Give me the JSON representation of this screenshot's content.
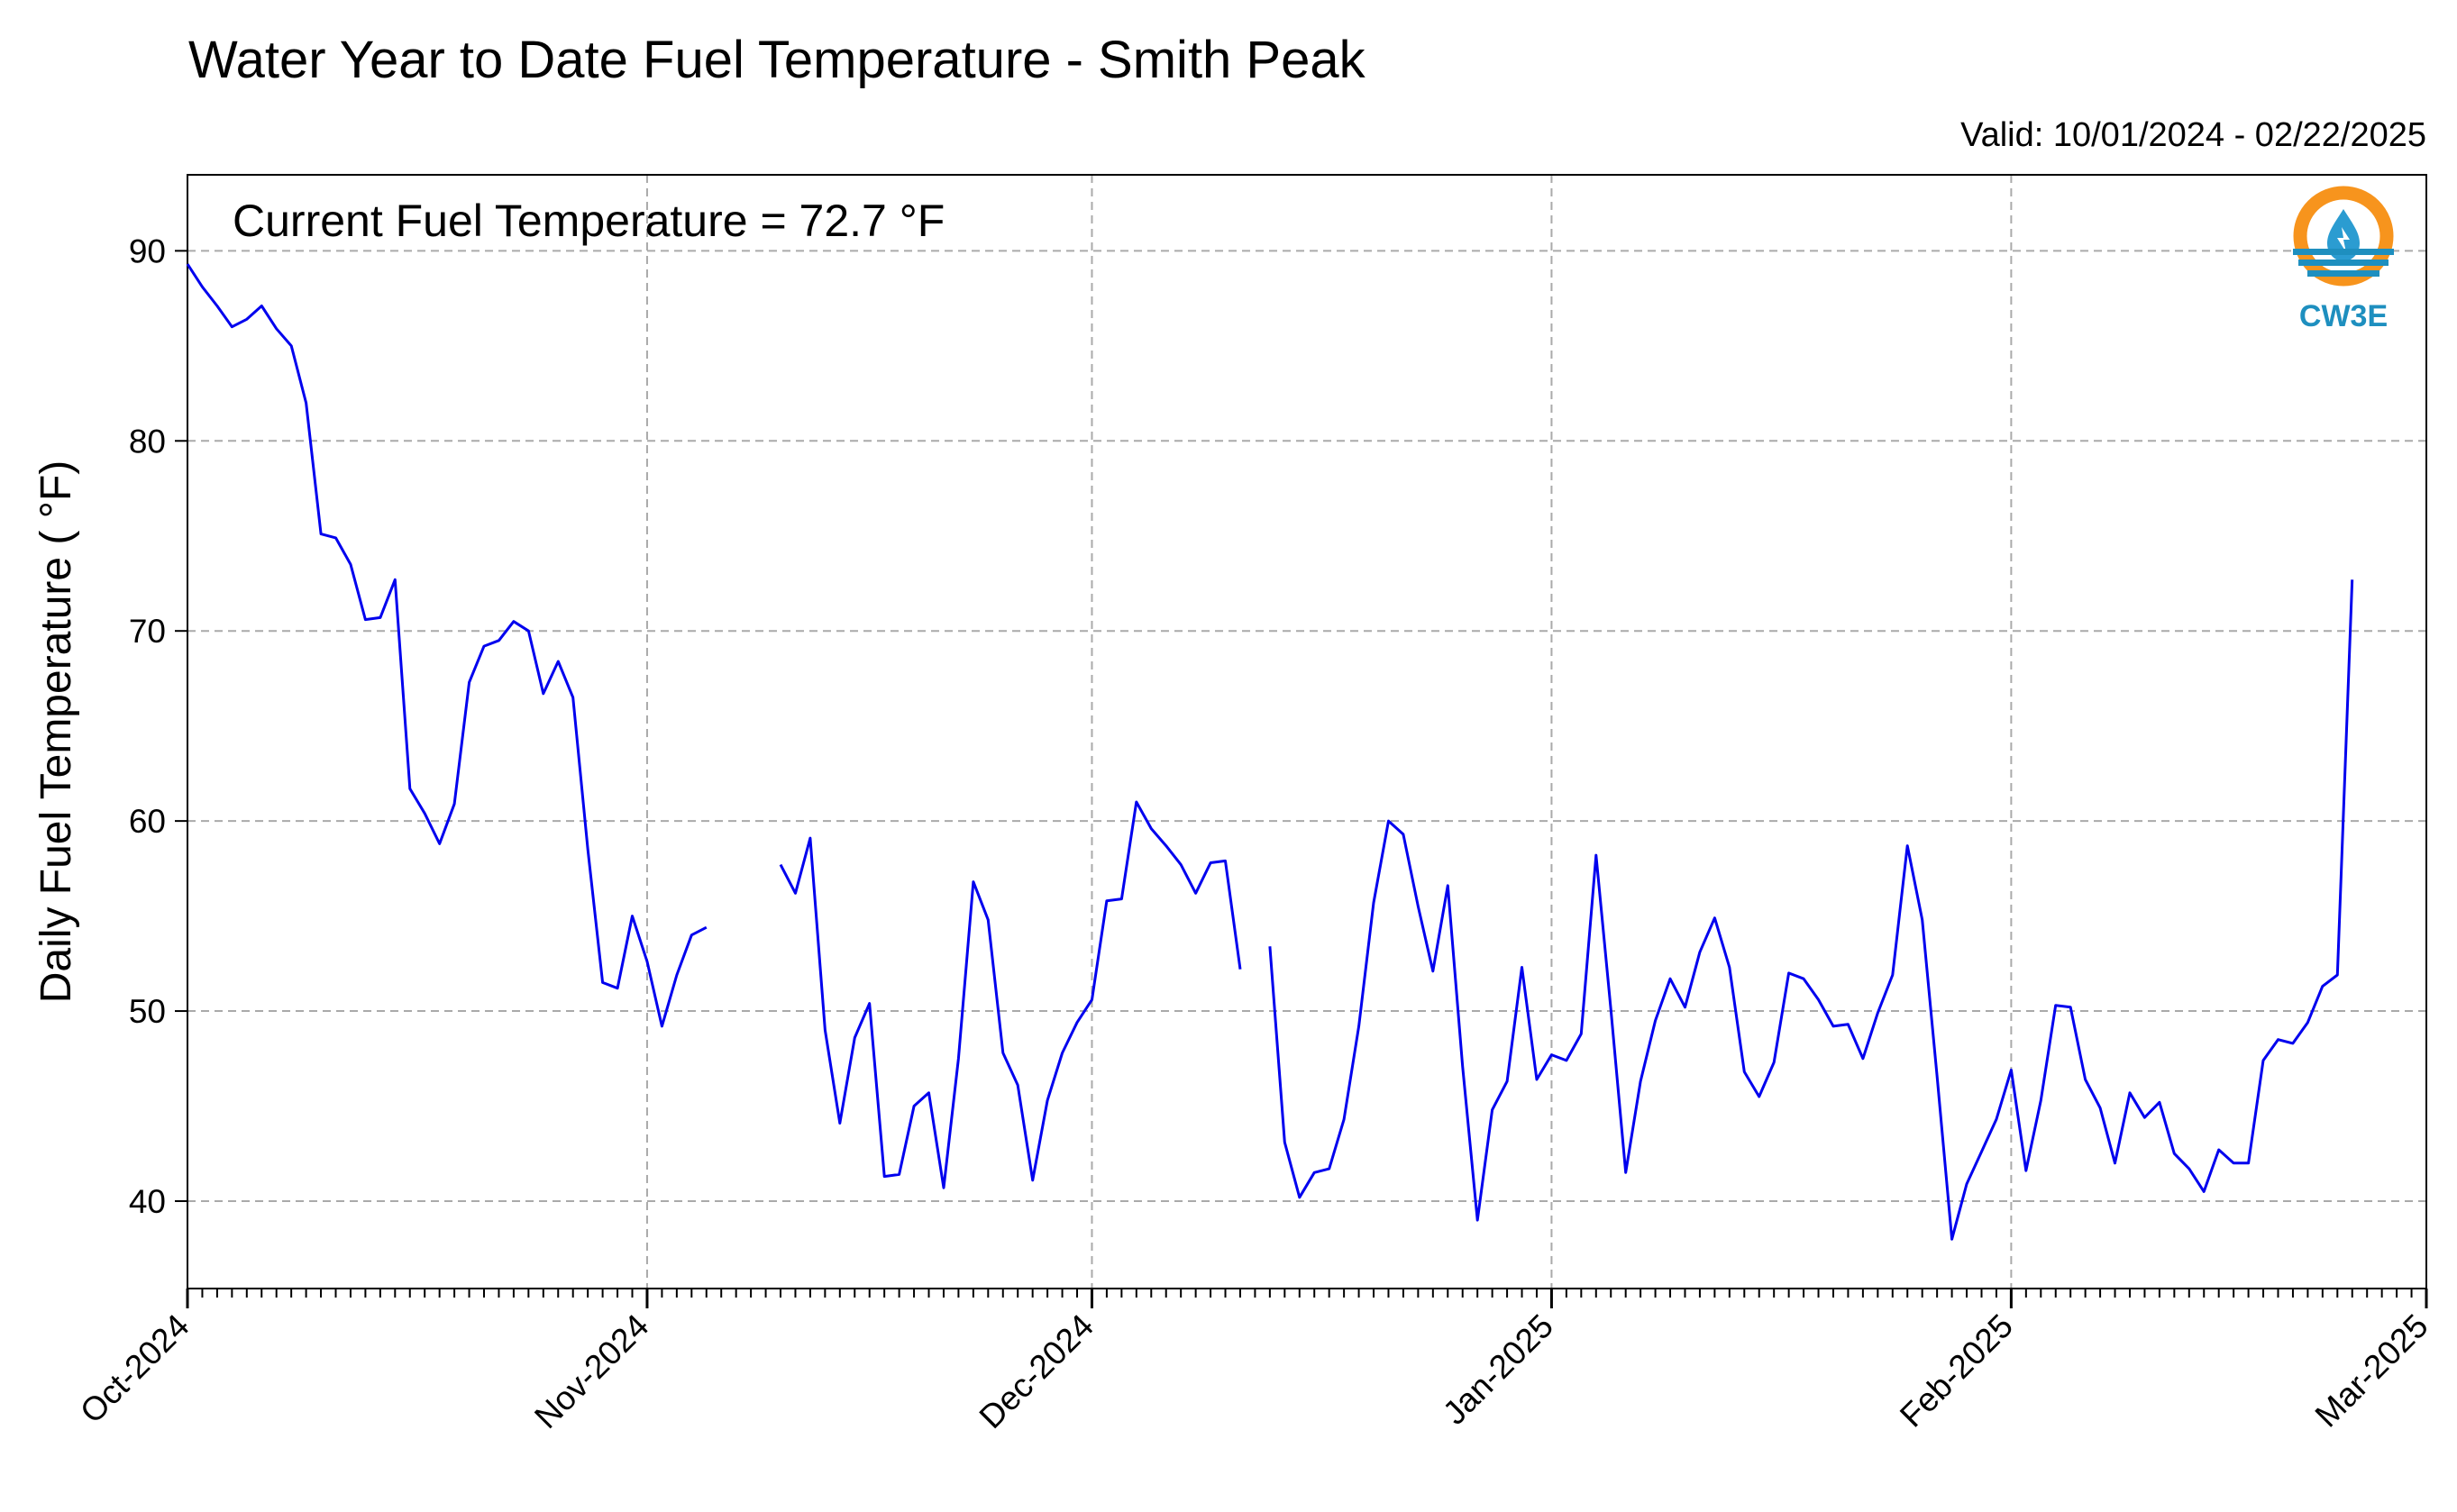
{
  "chart_data": {
    "type": "line",
    "title": "Water Year to Date Fuel Temperature - Smith Peak",
    "subtitle": "Valid: 10/01/2024 - 02/22/2025",
    "annotation": "Current Fuel Temperature = 72.7 °F",
    "ylabel": "Daily Fuel Temperature ( °F)",
    "xlabel": "",
    "ylim": [
      35.4,
      94.0
    ],
    "xlim": [
      "2024-10-01",
      "2025-03-01"
    ],
    "yticks": [
      40,
      50,
      60,
      70,
      80,
      90
    ],
    "xticks": [
      {
        "date": "2024-10-01",
        "label": "Oct-2024"
      },
      {
        "date": "2024-11-01",
        "label": "Nov-2024"
      },
      {
        "date": "2024-12-01",
        "label": "Dec-2024"
      },
      {
        "date": "2025-01-01",
        "label": "Jan-2025"
      },
      {
        "date": "2025-02-01",
        "label": "Feb-2025"
      },
      {
        "date": "2025-03-01",
        "label": "Mar-2025"
      }
    ],
    "grid": true,
    "line_color": "#0000ee",
    "logo_text": "CW3E",
    "series": [
      {
        "x_start": "2024-10-01",
        "y": [
          89.3,
          88.1,
          87.1,
          86.0,
          86.4,
          87.1,
          85.9,
          85.0,
          82.0,
          75.1,
          74.9,
          73.5,
          70.6,
          70.7,
          72.7,
          61.7,
          60.4,
          58.8,
          60.9,
          67.3,
          69.2,
          69.5,
          70.5,
          70.0,
          66.7,
          68.4,
          66.5,
          58.5,
          51.5,
          51.2,
          55.0,
          52.6,
          49.2,
          51.9,
          54.0,
          54.4,
          null,
          null,
          null,
          null,
          57.7,
          56.2,
          59.1,
          49.0,
          44.1,
          48.6,
          50.4,
          41.3,
          41.4,
          45.0,
          45.7,
          40.7,
          47.5,
          56.8,
          54.8,
          47.8,
          46.1,
          41.1,
          45.3,
          47.8,
          49.4,
          50.6,
          55.8,
          55.9,
          61.0,
          59.6,
          58.7,
          57.7,
          56.2,
          57.8,
          57.9,
          52.2,
          null,
          53.4,
          43.1,
          40.2,
          41.5,
          41.7,
          44.3,
          49.2,
          55.7,
          60.0,
          59.3,
          55.5,
          52.1,
          56.6,
          47.1,
          39.0,
          44.8,
          46.3,
          52.3,
          46.4,
          47.7,
          47.4,
          48.8,
          58.2,
          50.1,
          41.5,
          46.3,
          49.5,
          51.7,
          50.2,
          53.1,
          54.9,
          52.3,
          46.8,
          45.5,
          47.3,
          52.0,
          51.7,
          50.6,
          49.2,
          49.3,
          47.5,
          49.9,
          51.9,
          58.7,
          54.8,
          46.6,
          38.0,
          40.9,
          42.6,
          44.3,
          46.9,
          41.6,
          45.3,
          50.3,
          50.2,
          46.4,
          44.9,
          42.0,
          45.7,
          44.4,
          45.2,
          42.5,
          41.7,
          40.5,
          42.7,
          42.0,
          42.0,
          47.4,
          48.5,
          48.3,
          49.4,
          51.3,
          51.9,
          72.7
        ]
      }
    ]
  }
}
